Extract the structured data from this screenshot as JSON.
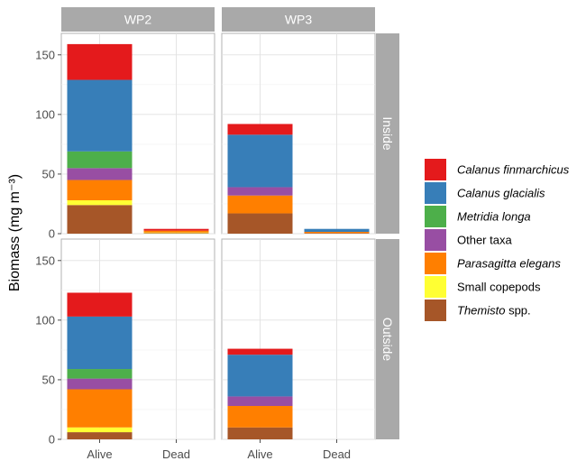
{
  "chart_data": {
    "type": "bar",
    "stacked": true,
    "ylabel": "Biomass (mg m⁻³)",
    "ylim": [
      0,
      168
    ],
    "yticks": [
      0,
      50,
      100,
      150
    ],
    "col_facets": [
      "WP2",
      "WP3"
    ],
    "row_facets": [
      "Inside",
      "Outside"
    ],
    "categories": [
      "Alive",
      "Dead"
    ],
    "legend": {
      "position": "right",
      "entries": [
        {
          "key": "calanus_finmarchicus",
          "name": "Calanus finmarchicus",
          "italic": true,
          "suffix": "",
          "color": "#e41a1c"
        },
        {
          "key": "calanus_glacialis",
          "name": "Calanus glacialis",
          "italic": true,
          "suffix": "",
          "color": "#377eb8"
        },
        {
          "key": "metridia_longa",
          "name": "Metridia longa",
          "italic": true,
          "suffix": "",
          "color": "#4daf4a"
        },
        {
          "key": "other_taxa",
          "name": "Other taxa",
          "italic": false,
          "suffix": "",
          "color": "#984ea3"
        },
        {
          "key": "parasagitta_elegans",
          "name": "Parasagitta elegans",
          "italic": true,
          "suffix": "",
          "color": "#ff7f00"
        },
        {
          "key": "small_copepods",
          "name": "Small copepods",
          "italic": false,
          "suffix": "",
          "color": "#ffff33"
        },
        {
          "key": "themisto",
          "name": "Themisto",
          "italic": true,
          "suffix": " spp.",
          "color": "#a65628"
        }
      ]
    },
    "stack_order_bottom_to_top": [
      "themisto",
      "small_copepods",
      "parasagitta_elegans",
      "other_taxa",
      "metridia_longa",
      "calanus_glacialis",
      "calanus_finmarchicus"
    ],
    "panels": [
      {
        "net": "WP2",
        "location": "Inside",
        "bars": {
          "Alive": {
            "themisto": 24,
            "small_copepods": 4,
            "parasagitta_elegans": 17,
            "other_taxa": 10,
            "metridia_longa": 14,
            "calanus_glacialis": 60,
            "calanus_finmarchicus": 30
          },
          "Dead": {
            "themisto": 0.5,
            "small_copepods": 0.5,
            "parasagitta_elegans": 1.5,
            "other_taxa": 0,
            "metridia_longa": 0,
            "calanus_glacialis": 0,
            "calanus_finmarchicus": 1.5
          }
        }
      },
      {
        "net": "WP3",
        "location": "Inside",
        "bars": {
          "Alive": {
            "themisto": 17,
            "small_copepods": 0,
            "parasagitta_elegans": 15,
            "other_taxa": 7,
            "metridia_longa": 0,
            "calanus_glacialis": 44,
            "calanus_finmarchicus": 9
          },
          "Dead": {
            "themisto": 0.5,
            "small_copepods": 0,
            "parasagitta_elegans": 1,
            "other_taxa": 0,
            "metridia_longa": 0,
            "calanus_glacialis": 2.5,
            "calanus_finmarchicus": 0
          }
        }
      },
      {
        "net": "WP2",
        "location": "Outside",
        "bars": {
          "Alive": {
            "themisto": 6,
            "small_copepods": 4,
            "parasagitta_elegans": 32,
            "other_taxa": 9,
            "metridia_longa": 8,
            "calanus_glacialis": 44,
            "calanus_finmarchicus": 20
          },
          "Dead": {
            "themisto": 0,
            "small_copepods": 0,
            "parasagitta_elegans": 0,
            "other_taxa": 0,
            "metridia_longa": 0,
            "calanus_glacialis": 0,
            "calanus_finmarchicus": 0
          }
        }
      },
      {
        "net": "WP3",
        "location": "Outside",
        "bars": {
          "Alive": {
            "themisto": 10,
            "small_copepods": 0,
            "parasagitta_elegans": 18,
            "other_taxa": 8,
            "metridia_longa": 0,
            "calanus_glacialis": 35,
            "calanus_finmarchicus": 5
          },
          "Dead": {
            "themisto": 0,
            "small_copepods": 0,
            "parasagitta_elegans": 0,
            "other_taxa": 0,
            "metridia_longa": 0,
            "calanus_glacialis": 0,
            "calanus_finmarchicus": 0
          }
        }
      }
    ]
  }
}
